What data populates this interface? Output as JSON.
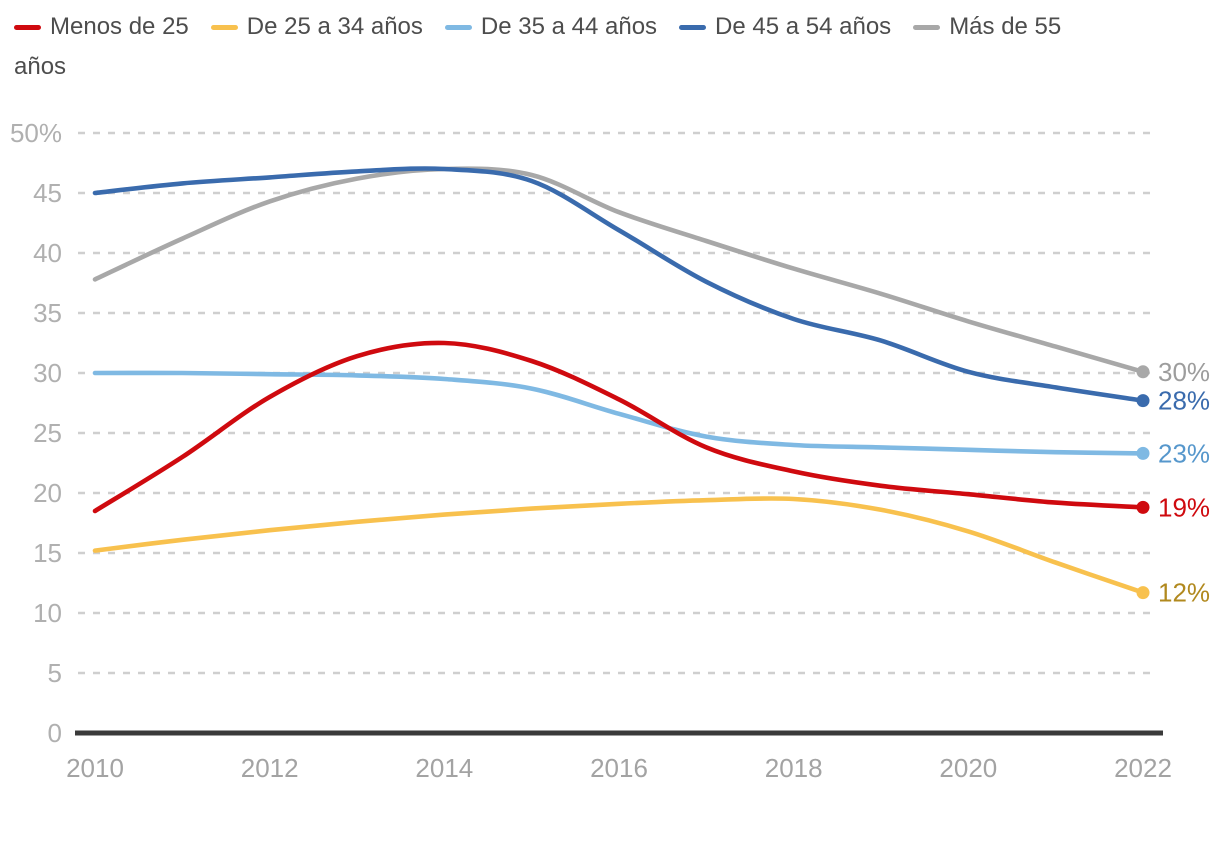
{
  "legend": {
    "row1_items": [
      {
        "label": "Menos de 25",
        "color": "#cf0a0f"
      },
      {
        "label": "De 25 a 34 años",
        "color": "#f8c14e"
      },
      {
        "label": "De 35 a 44 años",
        "color": "#7fb9e3"
      },
      {
        "label": "De 45 a 54 años",
        "color": "#3a6bad"
      },
      {
        "label": "Más de 55",
        "color": "#a8a8a8"
      }
    ],
    "row2_text": "años"
  },
  "chart_data": {
    "type": "line",
    "x": [
      2010,
      2011,
      2012,
      2013,
      2014,
      2015,
      2016,
      2017,
      2018,
      2019,
      2020,
      2021,
      2022
    ],
    "series": [
      {
        "name": "Más de 55 años",
        "color": "#a8a8a8",
        "values": [
          37.8,
          41.2,
          44.3,
          46.2,
          47.0,
          46.5,
          43.4,
          41.0,
          38.7,
          36.6,
          34.3,
          32.2,
          30.1
        ],
        "end_label": "30%",
        "end_label_color": "#9d9d9d"
      },
      {
        "name": "De 45 a 54 años",
        "color": "#3a6bad",
        "values": [
          45.0,
          45.8,
          46.3,
          46.8,
          47.0,
          46.0,
          41.9,
          37.6,
          34.5,
          32.7,
          30.1,
          28.8,
          27.7
        ],
        "end_label": "28%",
        "end_label_color": "#3a6bad"
      },
      {
        "name": "De 35 a 44 años",
        "color": "#7fb9e3",
        "values": [
          30.0,
          30.0,
          29.9,
          29.8,
          29.5,
          28.7,
          26.6,
          24.7,
          24.0,
          23.8,
          23.6,
          23.4,
          23.3
        ],
        "end_label": "23%",
        "end_label_color": "#5697cc"
      },
      {
        "name": "De 25 a 34 años",
        "color": "#f8c14e",
        "values": [
          15.2,
          16.1,
          16.9,
          17.6,
          18.2,
          18.7,
          19.1,
          19.4,
          19.5,
          18.6,
          16.8,
          14.2,
          11.7
        ],
        "end_label": "12%",
        "end_label_color": "#b1891e"
      },
      {
        "name": "Menos de 25",
        "color": "#cf0a0f",
        "values": [
          18.5,
          23.0,
          28.0,
          31.4,
          32.5,
          31.0,
          27.8,
          23.8,
          21.8,
          20.6,
          19.9,
          19.2,
          18.8
        ],
        "end_label": "19%",
        "end_label_color": "#cf0a0f"
      }
    ],
    "xticks": [
      2010,
      2012,
      2014,
      2016,
      2018,
      2020,
      2022
    ],
    "ytick_values": [
      0,
      5,
      10,
      15,
      20,
      25,
      30,
      35,
      40,
      45,
      50
    ],
    "ytick_labels": [
      "0",
      "5",
      "10",
      "15",
      "20",
      "25",
      "30",
      "35",
      "40",
      "45",
      "50%"
    ],
    "xlim": [
      2010,
      2022
    ],
    "ylim": [
      0,
      50
    ],
    "grid": "horizontal-dashed",
    "legend_position": "top"
  },
  "colors": {
    "grid": "#cfcfcf",
    "axis_line": "#3a3a3a",
    "ytick_text": "#b0b0b0",
    "xtick_text": "#a3a3a3",
    "legend_text": "#4d4d4d",
    "background": "#ffffff"
  }
}
